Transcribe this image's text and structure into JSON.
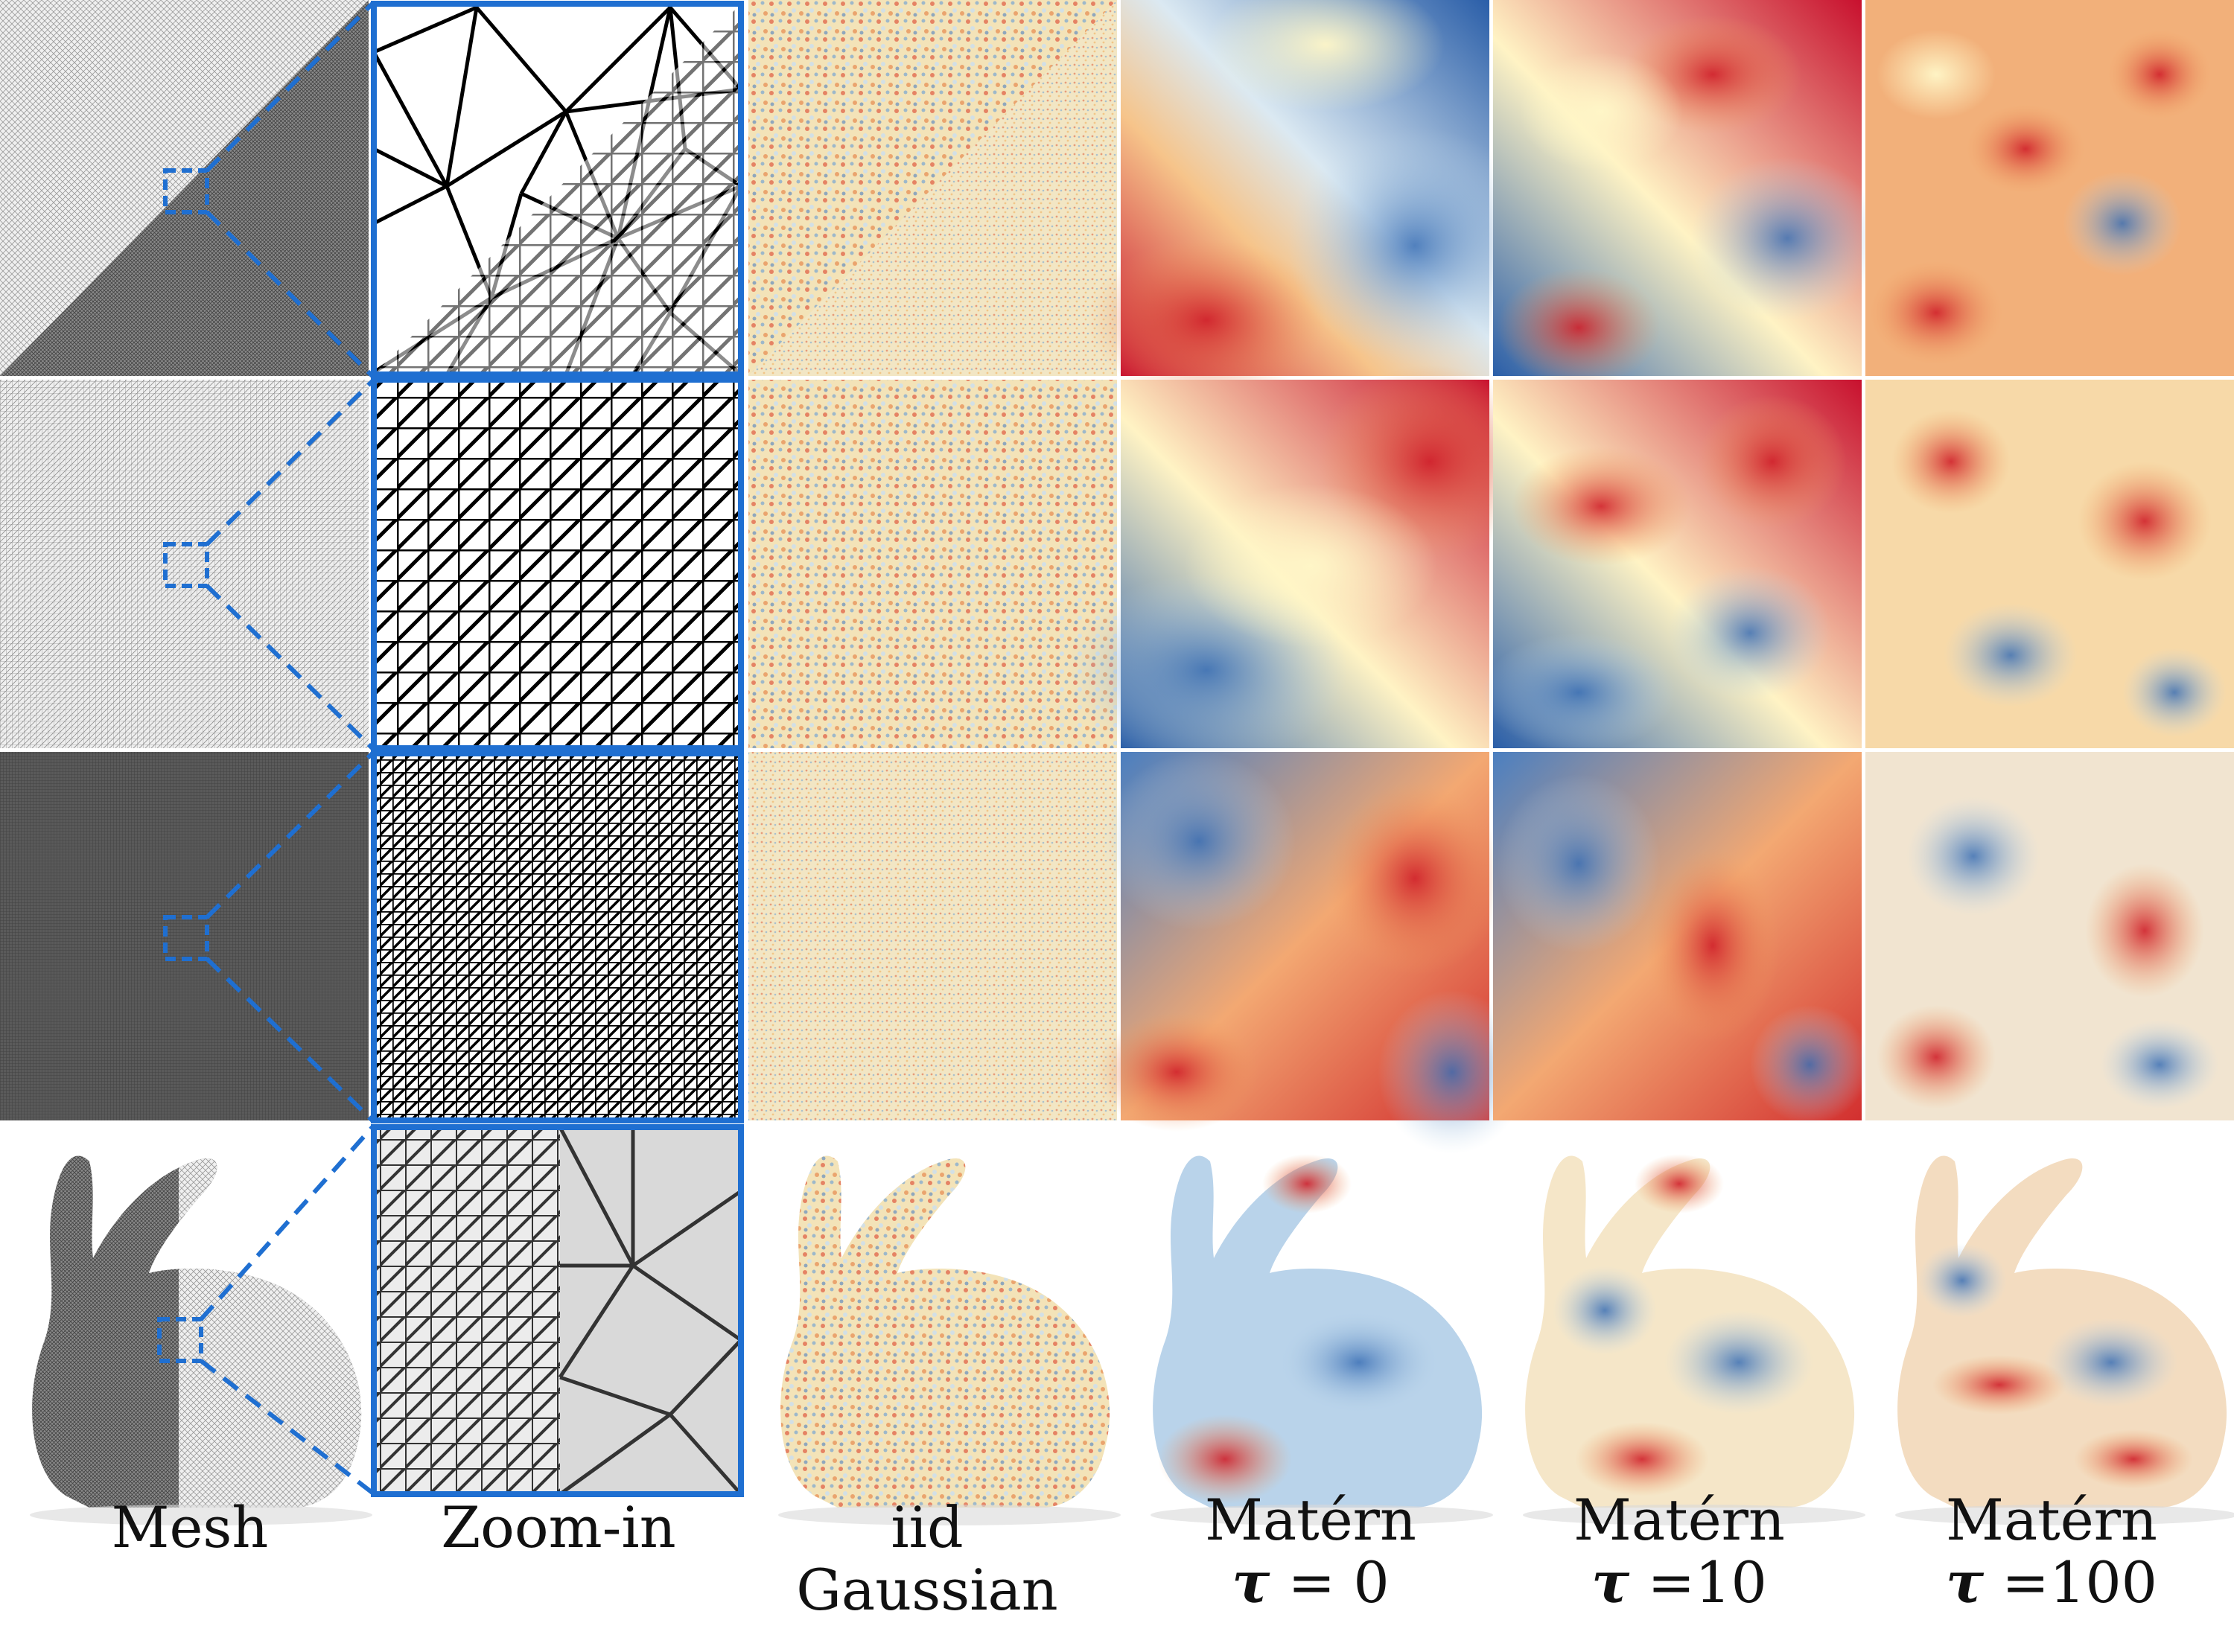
{
  "captions": {
    "mesh": "Mesh",
    "zoom": "Zoom-in",
    "iid": "iid Gaussian",
    "matern0": {
      "name": "Matérn",
      "symbol": "τ",
      "eq": "= 0"
    },
    "matern10": {
      "name": "Matérn",
      "symbol": "τ",
      "eq": "=10"
    },
    "matern100": {
      "name": "Matérn",
      "symbol": "τ",
      "eq": "=100"
    }
  },
  "colors": {
    "zoom_frame": "#1f6fd1",
    "field_red": "#c8102e",
    "field_yellow": "#fff6c2",
    "field_blue": "#2a5ea8",
    "mesh_dark": "#555555",
    "mesh_light": "#e6e6e6"
  }
}
